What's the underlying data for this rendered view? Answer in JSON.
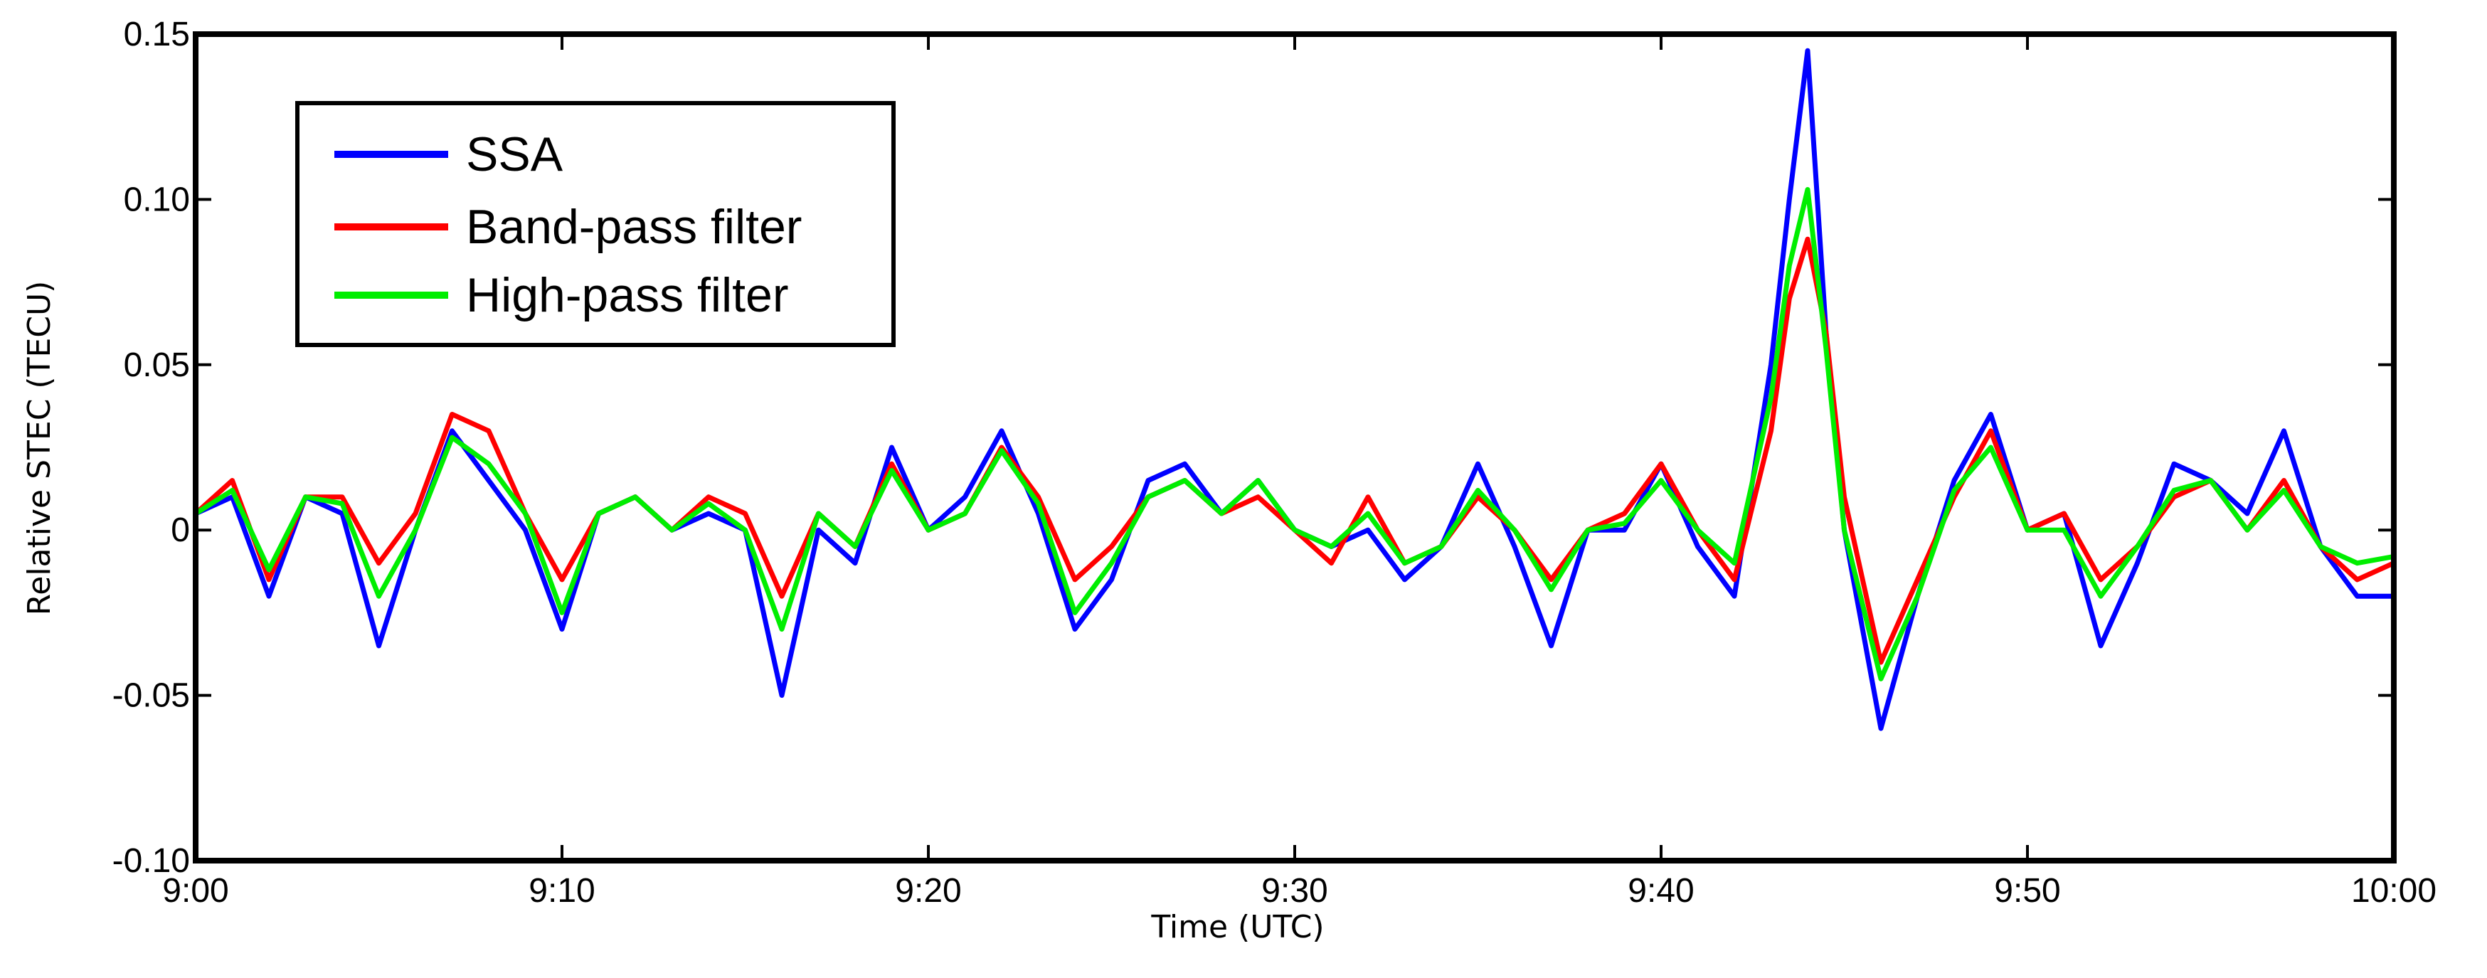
{
  "chart_data": {
    "type": "line",
    "title": "",
    "xlabel": "Time (UTC)",
    "ylabel": "Relative STEC (TECU)",
    "xlim": [
      0,
      60
    ],
    "ylim": [
      -0.1,
      0.15
    ],
    "x_tick_values": [
      0,
      10,
      20,
      30,
      40,
      50,
      60
    ],
    "x_tick_labels": [
      "9:00",
      "9:10",
      "9:20",
      "9:30",
      "9:40",
      "9:50",
      "10:00"
    ],
    "y_tick_values": [
      -0.1,
      -0.05,
      0,
      0.05,
      0.1,
      0.15
    ],
    "y_tick_labels": [
      "-0.10",
      "-0.05",
      "0",
      "0.05",
      "0.10",
      "0.15"
    ],
    "grid": false,
    "legend_position": "top-left",
    "series": [
      {
        "name": "SSA",
        "color": "#0000ff",
        "x": [
          0,
          1,
          2,
          3,
          4,
          5,
          6,
          7,
          8,
          9,
          10,
          11,
          12,
          13,
          14,
          15,
          16,
          17,
          18,
          19,
          20,
          21,
          22,
          23,
          24,
          25,
          26,
          27,
          28,
          29,
          30,
          31,
          32,
          33,
          34,
          35,
          36,
          37,
          38,
          39,
          40,
          41,
          42,
          43,
          43.5,
          44,
          44.5,
          45,
          46,
          47,
          48,
          49,
          50,
          51,
          52,
          53,
          54,
          55,
          56,
          57,
          58,
          59,
          60
        ],
        "y": [
          0.005,
          0.01,
          -0.02,
          0.01,
          0.005,
          -0.035,
          0.0,
          0.03,
          0.015,
          0.0,
          -0.03,
          0.005,
          0.01,
          0.0,
          0.005,
          0.0,
          -0.05,
          0.0,
          -0.01,
          0.025,
          0.0,
          0.01,
          0.03,
          0.005,
          -0.03,
          -0.015,
          0.015,
          0.02,
          0.005,
          0.015,
          0.0,
          -0.005,
          0.0,
          -0.015,
          -0.005,
          0.02,
          -0.005,
          -0.035,
          0.0,
          0.0,
          0.02,
          -0.005,
          -0.02,
          0.05,
          0.1,
          0.145,
          0.06,
          0.0,
          -0.06,
          -0.02,
          0.015,
          0.035,
          0.0,
          0.005,
          -0.035,
          -0.01,
          0.02,
          0.015,
          0.005,
          0.03,
          -0.005,
          -0.02,
          -0.02
        ]
      },
      {
        "name": "Band-pass filter",
        "color": "#ff0000",
        "x": [
          0,
          1,
          2,
          3,
          4,
          5,
          6,
          7,
          8,
          9,
          10,
          11,
          12,
          13,
          14,
          15,
          16,
          17,
          18,
          19,
          20,
          21,
          22,
          23,
          24,
          25,
          26,
          27,
          28,
          29,
          30,
          31,
          32,
          33,
          34,
          35,
          36,
          37,
          38,
          39,
          40,
          41,
          42,
          43,
          43.5,
          44,
          44.5,
          45,
          46,
          47,
          48,
          49,
          50,
          51,
          52,
          53,
          54,
          55,
          56,
          57,
          58,
          59,
          60
        ],
        "y": [
          0.005,
          0.015,
          -0.015,
          0.01,
          0.01,
          -0.01,
          0.005,
          0.035,
          0.03,
          0.005,
          -0.015,
          0.005,
          0.01,
          0.0,
          0.01,
          0.005,
          -0.02,
          0.005,
          -0.005,
          0.02,
          0.0,
          0.005,
          0.025,
          0.01,
          -0.015,
          -0.005,
          0.01,
          0.015,
          0.005,
          0.01,
          0.0,
          -0.01,
          0.01,
          -0.01,
          -0.005,
          0.01,
          0.0,
          -0.015,
          0.0,
          0.005,
          0.02,
          0.0,
          -0.015,
          0.03,
          0.07,
          0.088,
          0.06,
          0.01,
          -0.04,
          -0.015,
          0.01,
          0.03,
          0.0,
          0.005,
          -0.015,
          -0.005,
          0.01,
          0.015,
          0.0,
          0.015,
          -0.005,
          -0.015,
          -0.01
        ]
      },
      {
        "name": "High-pass filter",
        "color": "#00ee00",
        "x": [
          0,
          1,
          2,
          3,
          4,
          5,
          6,
          7,
          8,
          9,
          10,
          11,
          12,
          13,
          14,
          15,
          16,
          17,
          18,
          19,
          20,
          21,
          22,
          23,
          24,
          25,
          26,
          27,
          28,
          29,
          30,
          31,
          32,
          33,
          34,
          35,
          36,
          37,
          38,
          39,
          40,
          41,
          42,
          43,
          43.5,
          44,
          44.5,
          45,
          46,
          47,
          48,
          49,
          50,
          51,
          52,
          53,
          54,
          55,
          56,
          57,
          58,
          59,
          60
        ],
        "y": [
          0.005,
          0.012,
          -0.012,
          0.01,
          0.008,
          -0.02,
          0.0,
          0.028,
          0.02,
          0.005,
          -0.025,
          0.005,
          0.01,
          0.0,
          0.008,
          0.0,
          -0.03,
          0.005,
          -0.005,
          0.018,
          0.0,
          0.005,
          0.024,
          0.008,
          -0.025,
          -0.01,
          0.01,
          0.015,
          0.005,
          0.015,
          0.0,
          -0.005,
          0.005,
          -0.01,
          -0.005,
          0.012,
          0.0,
          -0.018,
          0.0,
          0.002,
          0.015,
          0.0,
          -0.01,
          0.04,
          0.08,
          0.103,
          0.055,
          0.0,
          -0.045,
          -0.02,
          0.012,
          0.025,
          0.0,
          0.0,
          -0.02,
          -0.005,
          0.012,
          0.015,
          0.0,
          0.012,
          -0.005,
          -0.01,
          -0.008
        ]
      }
    ]
  }
}
